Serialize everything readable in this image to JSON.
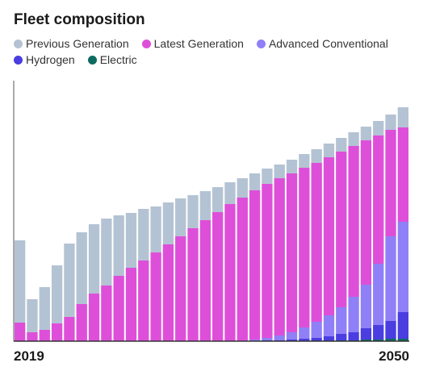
{
  "chart_data": {
    "type": "stacked-bar",
    "title": "Fleet composition",
    "categories": [
      "2019",
      null,
      null,
      null,
      null,
      null,
      null,
      null,
      null,
      null,
      null,
      null,
      null,
      null,
      null,
      null,
      null,
      null,
      null,
      null,
      null,
      null,
      null,
      null,
      null,
      null,
      null,
      null,
      null,
      null,
      null,
      "2050"
    ],
    "series": [
      {
        "name": "Previous Generation",
        "color": "#b4c3d3",
        "values": [
          102,
          41,
          53,
          72,
          91,
          89,
          86,
          83,
          75,
          68,
          64,
          57,
          52,
          47,
          41,
          36,
          31,
          27,
          24,
          21,
          19,
          17,
          17,
          17,
          17,
          17,
          17,
          17,
          17,
          18,
          19,
          25
        ]
      },
      {
        "name": "Latest Generation",
        "color": "#de4fd9",
        "values": [
          23,
          11,
          14,
          22,
          30,
          46,
          59,
          69,
          81,
          91,
          100,
          110,
          120,
          130,
          140,
          150,
          160,
          170,
          178,
          185,
          191,
          195,
          197,
          198,
          197,
          196,
          193,
          187,
          179,
          159,
          132,
          117
        ]
      },
      {
        "name": "Advanced Conventional",
        "color": "#8f80f7",
        "values": [
          0,
          0,
          0,
          0,
          0,
          0,
          0,
          0,
          0,
          0,
          0,
          0,
          0,
          0,
          0,
          0,
          0,
          0,
          0,
          2,
          3,
          6,
          9,
          14,
          20,
          26,
          33,
          44,
          54,
          76,
          105,
          112
        ]
      },
      {
        "name": "Hydrogen",
        "color": "#4a3ee0",
        "values": [
          0,
          0,
          0,
          0,
          0,
          0,
          0,
          0,
          0,
          0,
          0,
          0,
          0,
          0,
          0,
          0,
          0,
          0,
          0,
          0,
          1,
          1,
          2,
          3,
          4,
          6,
          8,
          10,
          14,
          18,
          22,
          33
        ]
      },
      {
        "name": "Electric",
        "color": "#0c6b60",
        "values": [
          0,
          0,
          0,
          0,
          0,
          0,
          0,
          0,
          0,
          0,
          0,
          0,
          0,
          0,
          0,
          0,
          0,
          0,
          0,
          0,
          0,
          0,
          0,
          0,
          0,
          0,
          1,
          1,
          2,
          2,
          3,
          3
        ]
      }
    ]
  }
}
